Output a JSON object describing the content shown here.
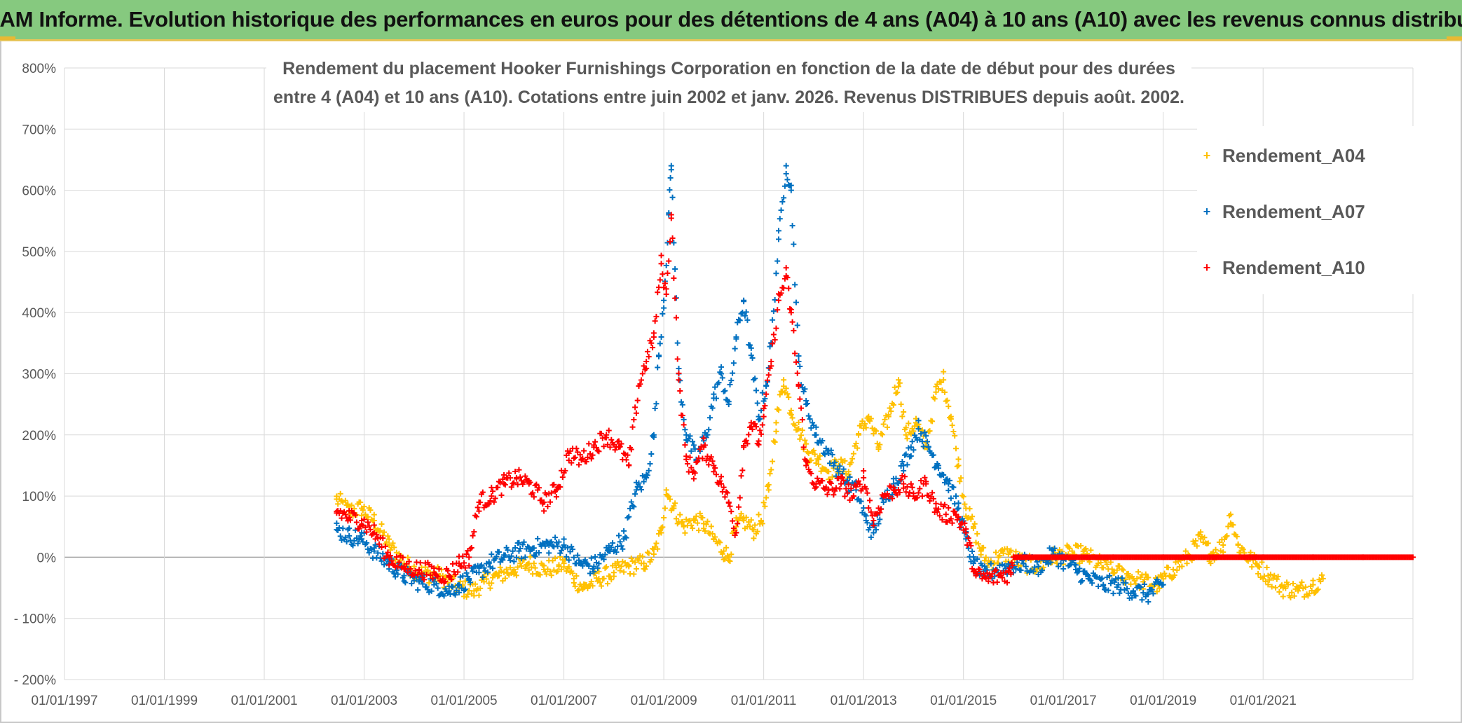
{
  "banner": {
    "title": "ADAM Informe. Evolution historique des performances en euros pour des détentions de 4 ans (A04) à 10 ans (A10) avec les revenus connus distribués"
  },
  "chart_data": {
    "type": "scatter",
    "title_line1": "Rendement du placement Hooker Furnishings Corporation en fonction de la date de début pour des durées",
    "title_line2": "entre 4 (A04) et 10 ans (A10). Cotations entre juin 2002 et janv. 2026. Revenus DISTRIBUES depuis août. 2002.",
    "xlabel": "",
    "ylabel": "",
    "x_range": [
      1997.0,
      2024.0
    ],
    "ylim": [
      -200,
      800
    ],
    "y_ticks": [
      -200,
      -100,
      0,
      100,
      200,
      300,
      400,
      500,
      600,
      700,
      800
    ],
    "y_tick_labels": [
      "- 200%",
      "- 100%",
      "0%",
      "100%",
      "200%",
      "300%",
      "400%",
      "500%",
      "600%",
      "700%",
      "800%"
    ],
    "x_ticks": [
      1997,
      1999,
      2001,
      2003,
      2005,
      2007,
      2009,
      2011,
      2013,
      2015,
      2017,
      2019,
      2021
    ],
    "x_tick_labels": [
      "01/01/1997",
      "01/01/1999",
      "01/01/2001",
      "01/01/2003",
      "01/01/2005",
      "01/01/2007",
      "01/01/2009",
      "01/01/2011",
      "01/01/2013",
      "01/01/2015",
      "01/01/2017",
      "01/01/2019",
      "01/01/2021"
    ],
    "legend_position": "top-right",
    "marker": "+",
    "series": [
      {
        "name": "Rendement_A04",
        "color": "#ffc000",
        "points": [
          [
            2002.45,
            95
          ],
          [
            2002.7,
            75
          ],
          [
            2002.95,
            80
          ],
          [
            2003.2,
            60
          ],
          [
            2003.5,
            20
          ],
          [
            2003.8,
            -10
          ],
          [
            2004.1,
            -25
          ],
          [
            2004.5,
            -30
          ],
          [
            2004.9,
            -50
          ],
          [
            2005.2,
            -55
          ],
          [
            2005.4,
            -40
          ],
          [
            2005.7,
            -30
          ],
          [
            2006.0,
            -20
          ],
          [
            2006.3,
            -10
          ],
          [
            2006.6,
            -20
          ],
          [
            2006.9,
            -15
          ],
          [
            2007.0,
            -10
          ],
          [
            2007.2,
            -35
          ],
          [
            2007.4,
            -50
          ],
          [
            2007.7,
            -35
          ],
          [
            2008.0,
            -25
          ],
          [
            2008.3,
            -15
          ],
          [
            2008.6,
            -10
          ],
          [
            2008.8,
            5
          ],
          [
            2008.95,
            40
          ],
          [
            2009.05,
            110
          ],
          [
            2009.2,
            80
          ],
          [
            2009.4,
            50
          ],
          [
            2009.6,
            60
          ],
          [
            2009.8,
            55
          ],
          [
            2010.0,
            30
          ],
          [
            2010.2,
            10
          ],
          [
            2010.3,
            0
          ],
          [
            2010.45,
            50
          ],
          [
            2010.6,
            60
          ],
          [
            2010.8,
            45
          ],
          [
            2010.95,
            60
          ],
          [
            2011.1,
            110
          ],
          [
            2011.25,
            220
          ],
          [
            2011.4,
            290
          ],
          [
            2011.55,
            240
          ],
          [
            2011.7,
            210
          ],
          [
            2011.9,
            170
          ],
          [
            2012.1,
            160
          ],
          [
            2012.3,
            140
          ],
          [
            2012.5,
            150
          ],
          [
            2012.7,
            140
          ],
          [
            2012.9,
            200
          ],
          [
            2013.1,
            230
          ],
          [
            2013.3,
            180
          ],
          [
            2013.5,
            230
          ],
          [
            2013.7,
            290
          ],
          [
            2013.85,
            200
          ],
          [
            2014.05,
            220
          ],
          [
            2014.25,
            180
          ],
          [
            2014.45,
            270
          ],
          [
            2014.6,
            290
          ],
          [
            2014.75,
            230
          ],
          [
            2014.9,
            150
          ],
          [
            2015.05,
            80
          ],
          [
            2015.2,
            50
          ],
          [
            2015.35,
            10
          ],
          [
            2015.5,
            -10
          ],
          [
            2015.7,
            0
          ],
          [
            2015.9,
            5
          ],
          [
            2016.2,
            -10
          ],
          [
            2016.5,
            -15
          ],
          [
            2016.8,
            0
          ],
          [
            2017.1,
            5
          ],
          [
            2017.4,
            5
          ],
          [
            2017.7,
            -10
          ],
          [
            2018.0,
            -25
          ],
          [
            2018.3,
            -30
          ],
          [
            2018.6,
            -40
          ],
          [
            2018.9,
            -45
          ],
          [
            2019.2,
            -20
          ],
          [
            2019.5,
            0
          ],
          [
            2019.75,
            30
          ],
          [
            2019.95,
            5
          ],
          [
            2020.2,
            20
          ],
          [
            2020.35,
            70
          ],
          [
            2020.5,
            20
          ],
          [
            2020.7,
            0
          ],
          [
            2020.9,
            -15
          ],
          [
            2021.1,
            -30
          ],
          [
            2021.4,
            -50
          ],
          [
            2021.7,
            -55
          ],
          [
            2022.0,
            -45
          ],
          [
            2022.2,
            -35
          ]
        ]
      },
      {
        "name": "Rendement_A07",
        "color": "#0070c0",
        "points": [
          [
            2002.45,
            45
          ],
          [
            2002.7,
            35
          ],
          [
            2002.95,
            30
          ],
          [
            2003.2,
            10
          ],
          [
            2003.5,
            -10
          ],
          [
            2003.8,
            -30
          ],
          [
            2004.1,
            -40
          ],
          [
            2004.4,
            -45
          ],
          [
            2004.7,
            -55
          ],
          [
            2004.9,
            -45
          ],
          [
            2005.1,
            -35
          ],
          [
            2005.3,
            -25
          ],
          [
            2005.5,
            -10
          ],
          [
            2005.8,
            0
          ],
          [
            2006.1,
            10
          ],
          [
            2006.4,
            15
          ],
          [
            2006.7,
            20
          ],
          [
            2007.0,
            20
          ],
          [
            2007.3,
            -10
          ],
          [
            2007.6,
            -15
          ],
          [
            2007.9,
            10
          ],
          [
            2008.2,
            30
          ],
          [
            2008.45,
            110
          ],
          [
            2008.65,
            130
          ],
          [
            2008.8,
            200
          ],
          [
            2008.9,
            330
          ],
          [
            2009.0,
            420
          ],
          [
            2009.1,
            560
          ],
          [
            2009.15,
            640
          ],
          [
            2009.3,
            300
          ],
          [
            2009.45,
            200
          ],
          [
            2009.65,
            160
          ],
          [
            2009.85,
            200
          ],
          [
            2010.0,
            260
          ],
          [
            2010.15,
            300
          ],
          [
            2010.3,
            250
          ],
          [
            2010.45,
            360
          ],
          [
            2010.6,
            420
          ],
          [
            2010.75,
            330
          ],
          [
            2010.9,
            230
          ],
          [
            2011.05,
            280
          ],
          [
            2011.15,
            350
          ],
          [
            2011.3,
            520
          ],
          [
            2011.45,
            640
          ],
          [
            2011.55,
            600
          ],
          [
            2011.7,
            320
          ],
          [
            2011.85,
            250
          ],
          [
            2012.05,
            200
          ],
          [
            2012.3,
            170
          ],
          [
            2012.5,
            140
          ],
          [
            2012.7,
            120
          ],
          [
            2012.85,
            110
          ],
          [
            2013.05,
            60
          ],
          [
            2013.2,
            40
          ],
          [
            2013.4,
            90
          ],
          [
            2013.6,
            120
          ],
          [
            2013.8,
            150
          ],
          [
            2013.95,
            180
          ],
          [
            2014.1,
            210
          ],
          [
            2014.3,
            180
          ],
          [
            2014.5,
            150
          ],
          [
            2014.7,
            120
          ],
          [
            2014.9,
            80
          ],
          [
            2015.05,
            30
          ],
          [
            2015.2,
            -10
          ],
          [
            2015.4,
            -30
          ],
          [
            2015.65,
            -20
          ],
          [
            2015.9,
            -15
          ],
          [
            2016.2,
            -10
          ],
          [
            2016.5,
            -15
          ],
          [
            2016.8,
            5
          ],
          [
            2017.0,
            -5
          ],
          [
            2017.25,
            -20
          ],
          [
            2017.5,
            -35
          ],
          [
            2017.8,
            -45
          ],
          [
            2018.1,
            -45
          ],
          [
            2018.4,
            -55
          ],
          [
            2018.7,
            -60
          ],
          [
            2019.0,
            -45
          ]
        ]
      },
      {
        "name": "Rendement_A10",
        "color": "#ff0000",
        "points": [
          [
            2002.45,
            75
          ],
          [
            2002.7,
            65
          ],
          [
            2002.95,
            60
          ],
          [
            2003.2,
            40
          ],
          [
            2003.5,
            0
          ],
          [
            2003.8,
            -15
          ],
          [
            2004.1,
            -20
          ],
          [
            2004.4,
            -25
          ],
          [
            2004.7,
            -30
          ],
          [
            2004.9,
            -10
          ],
          [
            2005.1,
            0
          ],
          [
            2005.3,
            90
          ],
          [
            2005.55,
            100
          ],
          [
            2005.8,
            120
          ],
          [
            2006.05,
            130
          ],
          [
            2006.3,
            120
          ],
          [
            2006.6,
            90
          ],
          [
            2006.85,
            110
          ],
          [
            2007.1,
            170
          ],
          [
            2007.35,
            160
          ],
          [
            2007.6,
            180
          ],
          [
            2007.85,
            200
          ],
          [
            2008.1,
            180
          ],
          [
            2008.3,
            150
          ],
          [
            2008.5,
            280
          ],
          [
            2008.65,
            320
          ],
          [
            2008.8,
            360
          ],
          [
            2008.95,
            480
          ],
          [
            2009.05,
            430
          ],
          [
            2009.15,
            560
          ],
          [
            2009.3,
            290
          ],
          [
            2009.45,
            160
          ],
          [
            2009.6,
            140
          ],
          [
            2009.8,
            180
          ],
          [
            2010.0,
            150
          ],
          [
            2010.15,
            120
          ],
          [
            2010.3,
            90
          ],
          [
            2010.45,
            40
          ],
          [
            2010.6,
            180
          ],
          [
            2010.75,
            220
          ],
          [
            2010.9,
            190
          ],
          [
            2011.0,
            230
          ],
          [
            2011.15,
            320
          ],
          [
            2011.3,
            420
          ],
          [
            2011.45,
            460
          ],
          [
            2011.55,
            400
          ],
          [
            2011.7,
            280
          ],
          [
            2011.85,
            150
          ],
          [
            2012.05,
            120
          ],
          [
            2012.3,
            110
          ],
          [
            2012.55,
            120
          ],
          [
            2012.8,
            100
          ],
          [
            2013.0,
            130
          ],
          [
            2013.2,
            60
          ],
          [
            2013.4,
            100
          ],
          [
            2013.6,
            110
          ],
          [
            2013.8,
            120
          ],
          [
            2014.0,
            100
          ],
          [
            2014.25,
            120
          ],
          [
            2014.45,
            80
          ],
          [
            2014.65,
            70
          ],
          [
            2014.85,
            70
          ],
          [
            2015.05,
            40
          ],
          [
            2015.25,
            -30
          ],
          [
            2015.5,
            -35
          ],
          [
            2015.75,
            -30
          ],
          [
            2015.95,
            -25
          ],
          [
            2016.0,
            0
          ],
          [
            2017.0,
            0
          ],
          [
            2018.0,
            0
          ],
          [
            2019.0,
            0
          ],
          [
            2020.0,
            0
          ],
          [
            2021.0,
            0
          ],
          [
            2022.0,
            0
          ],
          [
            2023.0,
            0
          ],
          [
            2024.0,
            0
          ]
        ]
      }
    ]
  }
}
